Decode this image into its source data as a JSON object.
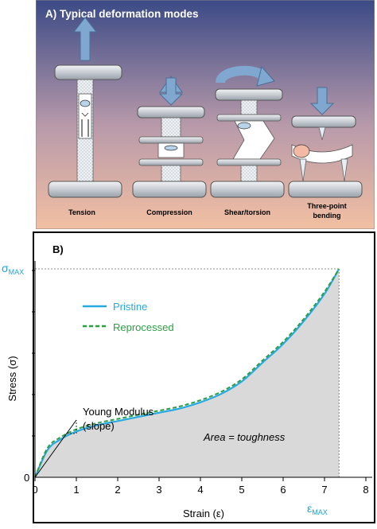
{
  "panel_a": {
    "title": "A) Typical deformation modes",
    "modes": [
      "Tension",
      "Compression",
      "Shear/torsion",
      "Three-point",
      "bending"
    ],
    "colors": {
      "bg_top": "#3b4a86",
      "bg_bottom": "#f2bfa2",
      "plate": "#cfd3d8",
      "arrow": "#7fa7cf",
      "specimen": "#e9eef2"
    }
  },
  "panel_b": {
    "label": "B)",
    "sigma_max": "σ",
    "sigma_max_sub": "MAX",
    "eps_max": "ε",
    "eps_max_sub": "MAX",
    "young_label": "Young Modulus",
    "slope_label": "(slope)",
    "area_label": "Area = toughness",
    "colors": {
      "pristine": "#27a9e1",
      "reprocessed": "#2e9e44",
      "area": "#d9d9d9",
      "annot": "#1aa3d9"
    }
  },
  "chart_data": {
    "type": "line",
    "xlabel": "Strain (ε)",
    "ylabel": "Stress (σ)",
    "xlim": [
      0,
      8
    ],
    "x_ticks": [
      "0",
      "1",
      "2",
      "3",
      "4",
      "5",
      "6",
      "7",
      "8"
    ],
    "y_ticks": [
      "0"
    ],
    "legend_position": "top-left",
    "grid": false,
    "series": [
      {
        "name": "Pristine",
        "x": [
          0,
          0.3,
          0.6,
          1,
          1.5,
          2,
          2.5,
          3,
          3.5,
          4,
          4.5,
          5,
          5.5,
          6,
          6.5,
          7,
          7.35
        ],
        "y": [
          0,
          0.13,
          0.18,
          0.22,
          0.25,
          0.27,
          0.29,
          0.31,
          0.33,
          0.36,
          0.4,
          0.46,
          0.55,
          0.64,
          0.75,
          0.88,
          1.0
        ]
      },
      {
        "name": "Reprocessed",
        "x": [
          0,
          0.3,
          0.6,
          1,
          1.5,
          2,
          2.5,
          3,
          3.5,
          4,
          4.5,
          5,
          5.5,
          6,
          6.5,
          7,
          7.35
        ],
        "y": [
          0,
          0.14,
          0.19,
          0.23,
          0.26,
          0.28,
          0.3,
          0.32,
          0.34,
          0.37,
          0.41,
          0.47,
          0.56,
          0.65,
          0.76,
          0.89,
          1.0
        ]
      }
    ]
  }
}
